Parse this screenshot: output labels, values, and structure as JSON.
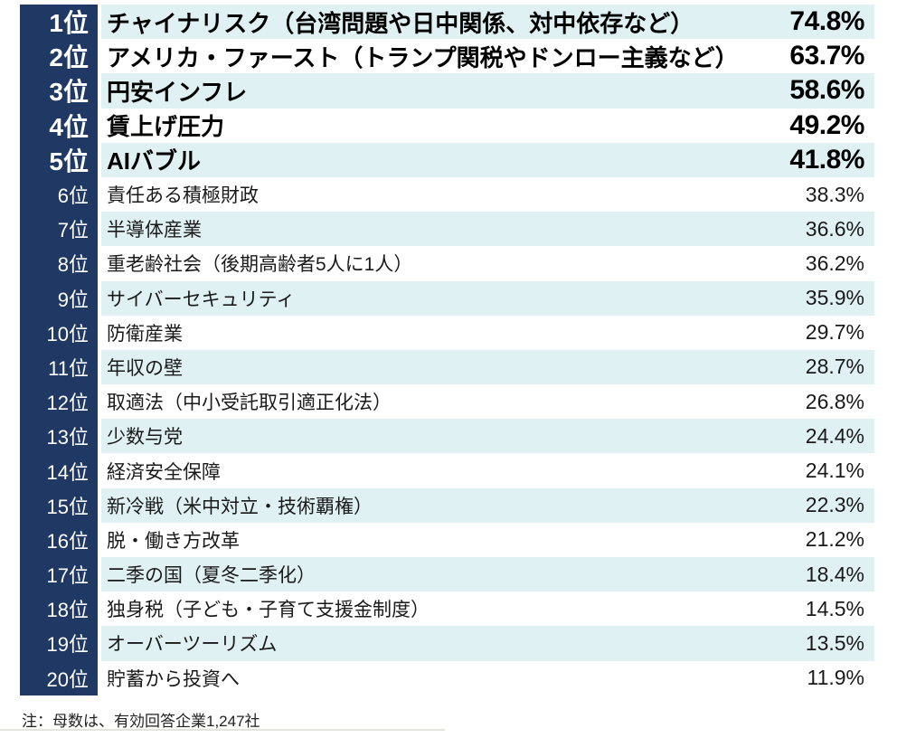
{
  "colors": {
    "rank_column_bg": "#1f3864",
    "alt_row_bg": "#e0f1f3",
    "row_bg": "#ffffff",
    "rank_text": "#ffffff",
    "body_text": "#1a1a1a"
  },
  "table": {
    "rows": [
      {
        "rank": "1位",
        "label": "チャイナリスク（台湾問題や日中関係、対中依存など）",
        "value": "74.8%",
        "top5": true
      },
      {
        "rank": "2位",
        "label": "アメリカ・ファースト（トランプ関税やドンロー主義など）",
        "value": "63.7%",
        "top5": true
      },
      {
        "rank": "3位",
        "label": "円安インフレ",
        "value": "58.6%",
        "top5": true
      },
      {
        "rank": "4位",
        "label": "賃上げ圧力",
        "value": "49.2%",
        "top5": true
      },
      {
        "rank": "5位",
        "label": "AIバブル",
        "value": "41.8%",
        "top5": true
      },
      {
        "rank": "6位",
        "label": "責任ある積極財政",
        "value": "38.3%",
        "top5": false
      },
      {
        "rank": "7位",
        "label": "半導体産業",
        "value": "36.6%",
        "top5": false
      },
      {
        "rank": "8位",
        "label": "重老齢社会（後期高齢者5人に1人）",
        "value": "36.2%",
        "top5": false
      },
      {
        "rank": "9位",
        "label": "サイバーセキュリティ",
        "value": "35.9%",
        "top5": false
      },
      {
        "rank": "10位",
        "label": "防衛産業",
        "value": "29.7%",
        "top5": false
      },
      {
        "rank": "11位",
        "label": "年収の壁",
        "value": "28.7%",
        "top5": false
      },
      {
        "rank": "12位",
        "label": "取適法（中小受託取引適正化法）",
        "value": "26.8%",
        "top5": false
      },
      {
        "rank": "13位",
        "label": "少数与党",
        "value": "24.4%",
        "top5": false
      },
      {
        "rank": "14位",
        "label": "経済安全保障",
        "value": "24.1%",
        "top5": false
      },
      {
        "rank": "15位",
        "label": "新冷戦（米中対立・技術覇権）",
        "value": "22.3%",
        "top5": false
      },
      {
        "rank": "16位",
        "label": "脱・働き方改革",
        "value": "21.2%",
        "top5": false
      },
      {
        "rank": "17位",
        "label": "二季の国（夏冬二季化）",
        "value": "18.4%",
        "top5": false
      },
      {
        "rank": "18位",
        "label": "独身税（子ども・子育て支援金制度）",
        "value": "14.5%",
        "top5": false
      },
      {
        "rank": "19位",
        "label": "オーバーツーリズム",
        "value": "13.5%",
        "top5": false
      },
      {
        "rank": "20位",
        "label": "貯蓄から投資へ",
        "value": "11.9%",
        "top5": false
      }
    ]
  },
  "note": "注：母数は、有効回答企業1,247社",
  "chart_data": {
    "type": "table",
    "title": "",
    "categories": [
      "チャイナリスク（台湾問題や日中関係、対中依存など）",
      "アメリカ・ファースト（トランプ関税やドンロー主義など）",
      "円安インフレ",
      "賃上げ圧力",
      "AIバブル",
      "責任ある積極財政",
      "半導体産業",
      "重老齢社会（後期高齢者5人に1人）",
      "サイバーセキュリティ",
      "防衛産業",
      "年収の壁",
      "取適法（中小受託取引適正化法）",
      "少数与党",
      "経済安全保障",
      "新冷戦（米中対立・技術覇権）",
      "脱・働き方改革",
      "二季の国（夏冬二季化）",
      "独身税（子ども・子育て支援金制度）",
      "オーバーツーリズム",
      "貯蓄から投資へ"
    ],
    "ranks": [
      1,
      2,
      3,
      4,
      5,
      6,
      7,
      8,
      9,
      10,
      11,
      12,
      13,
      14,
      15,
      16,
      17,
      18,
      19,
      20
    ],
    "values_percent": [
      74.8,
      63.7,
      58.6,
      49.2,
      41.8,
      38.3,
      36.6,
      36.2,
      35.9,
      29.7,
      28.7,
      26.8,
      24.4,
      24.1,
      22.3,
      21.2,
      18.4,
      14.5,
      13.5,
      11.9
    ],
    "note": "注：母数は、有効回答企業1,247社",
    "sample_size": "1,247社"
  }
}
